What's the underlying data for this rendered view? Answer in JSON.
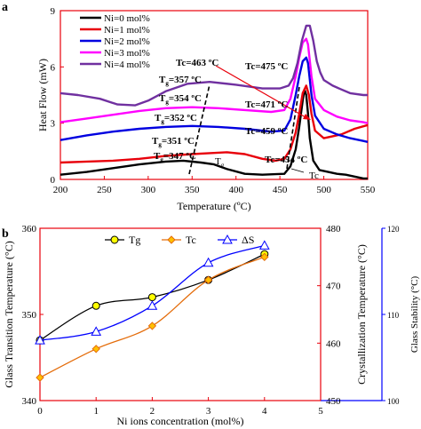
{
  "chart_data": [
    {
      "panel_label": "a",
      "type": "line",
      "xlabel": "Temperature (ºC)",
      "ylabel": "Heat Flow (mW)",
      "xlim": [
        200,
        550
      ],
      "ylim": [
        0,
        9
      ],
      "xticks": [
        "200",
        "250",
        "300",
        "350",
        "400",
        "450",
        "500",
        "550"
      ],
      "yticks": [
        "0",
        "3",
        "6",
        "9"
      ],
      "legend_position": "top-left",
      "series": [
        {
          "name": "Ni=0 mol%",
          "color": "#000000",
          "x": [
            200,
            230,
            260,
            290,
            320,
            340,
            360,
            375,
            390,
            410,
            430,
            445,
            455,
            462,
            468,
            472,
            476,
            478,
            480,
            482,
            484,
            488,
            495,
            505,
            515,
            525,
            535,
            545,
            550
          ],
          "y": [
            0.25,
            0.4,
            0.6,
            0.8,
            0.95,
            1.0,
            0.9,
            0.8,
            0.55,
            0.3,
            0.25,
            0.28,
            0.3,
            0.7,
            1.6,
            2.8,
            4.2,
            4.8,
            4.5,
            3.5,
            2.2,
            1.0,
            0.5,
            0.4,
            0.3,
            0.25,
            0.15,
            0.05,
            0.05
          ]
        },
        {
          "name": "Ni=1 mol%",
          "color": "#e8000b",
          "x": [
            200,
            230,
            260,
            290,
            320,
            350,
            370,
            390,
            410,
            430,
            445,
            455,
            462,
            468,
            472,
            476,
            480,
            483,
            486,
            490,
            500,
            510,
            520,
            535,
            550
          ],
          "y": [
            0.9,
            0.95,
            1.0,
            1.1,
            1.25,
            1.35,
            1.4,
            1.45,
            1.35,
            1.1,
            1.0,
            1.1,
            1.6,
            2.5,
            3.5,
            4.6,
            5.0,
            4.5,
            3.5,
            2.6,
            2.2,
            2.3,
            2.4,
            2.7,
            2.9
          ]
        },
        {
          "name": "Ni=2 mol%",
          "color": "#0000e0",
          "x": [
            200,
            230,
            260,
            290,
            320,
            350,
            380,
            410,
            440,
            455,
            462,
            468,
            472,
            476,
            480,
            482,
            486,
            490,
            500,
            515,
            530,
            545,
            550
          ],
          "y": [
            2.1,
            2.35,
            2.55,
            2.7,
            2.8,
            2.85,
            2.8,
            2.7,
            2.55,
            2.6,
            3.2,
            4.5,
            5.5,
            6.3,
            6.5,
            6.2,
            4.5,
            3.4,
            2.7,
            2.4,
            2.2,
            2.05,
            2.0
          ]
        },
        {
          "name": "Ni=3 mol%",
          "color": "#ff00ff",
          "x": [
            200,
            230,
            260,
            290,
            320,
            350,
            380,
            410,
            440,
            455,
            462,
            468,
            472,
            476,
            480,
            482,
            486,
            490,
            500,
            515,
            530,
            545,
            550
          ],
          "y": [
            3.05,
            3.25,
            3.45,
            3.65,
            3.8,
            3.85,
            3.8,
            3.7,
            3.6,
            3.7,
            4.3,
            5.5,
            6.5,
            7.3,
            7.5,
            7.2,
            5.5,
            4.3,
            3.7,
            3.35,
            3.15,
            3.05,
            3.0
          ]
        },
        {
          "name": "Ni=4 mol%",
          "color": "#7030a0",
          "x": [
            200,
            220,
            245,
            265,
            285,
            300,
            320,
            345,
            370,
            400,
            430,
            450,
            460,
            465,
            470,
            475,
            480,
            484,
            488,
            492,
            496,
            500,
            510,
            520,
            530,
            545,
            550
          ],
          "y": [
            4.6,
            4.5,
            4.3,
            4.0,
            3.95,
            4.2,
            4.7,
            5.1,
            5.2,
            5.05,
            4.85,
            4.85,
            5.0,
            5.4,
            6.2,
            7.4,
            8.2,
            8.2,
            7.4,
            6.3,
            5.7,
            5.3,
            5.0,
            4.8,
            4.6,
            4.5,
            4.5
          ]
        }
      ],
      "annotations": [
        "Tc=463 ºC",
        "Tc=475 ºC",
        "Tc=471 ºC",
        "Tc=459 ºC",
        "Tc=454 ºC",
        "Tc"
      ],
      "tg_annotations": [
        {
          "base": "T",
          "sub": "g",
          "rest": "=357 ºC"
        },
        {
          "base": "T",
          "sub": "g",
          "rest": "=354 ºC"
        },
        {
          "base": "T",
          "sub": "g",
          "rest": "=352 ºC"
        },
        {
          "base": "T",
          "sub": "g",
          "rest": "=351 ºC"
        },
        {
          "base": "T",
          "sub": "g",
          "rest": "=347 ºC"
        }
      ],
      "tg_marker": {
        "base": "T",
        "sub": "g"
      }
    },
    {
      "panel_label": "b",
      "type": "line",
      "xlabel": "Ni ions concentration (mol%)",
      "ylabel": "Glass Transition Temperature (°C)",
      "ylabel_right1": "Crystallization Temperature (°C)",
      "ylabel_right2": "Glass Stability (°C)",
      "xlim": [
        0,
        5
      ],
      "xticks": [
        "0",
        "1",
        "2",
        "3",
        "4",
        "5"
      ],
      "ylim": [
        340,
        360
      ],
      "yticks": [
        "340",
        "350",
        "360"
      ],
      "ylim_right1": [
        450,
        480
      ],
      "yticks_right1": [
        "450",
        "460",
        "470",
        "480"
      ],
      "ylim_right2": [
        100,
        120
      ],
      "yticks_right2": [
        "100",
        "110",
        "120"
      ],
      "legend_position": "top",
      "categories": [
        0,
        1,
        2,
        3,
        4
      ],
      "series": [
        {
          "name": "Tg",
          "axis": "left",
          "color": "#000000",
          "marker": "circle",
          "fill": "#ffff00",
          "values": [
            347,
            351,
            352,
            354,
            357
          ]
        },
        {
          "name": "Tc",
          "axis": "right1",
          "color": "#e46c0a",
          "marker": "diamond",
          "fill": "#ffc000",
          "values": [
            454,
            459,
            463,
            471,
            475
          ]
        },
        {
          "name": "ΔS",
          "axis": "right2",
          "color": "#0000ff",
          "marker": "triangle",
          "fill": "#ffffff",
          "values": [
            107,
            108,
            111,
            116,
            118
          ]
        }
      ]
    }
  ]
}
